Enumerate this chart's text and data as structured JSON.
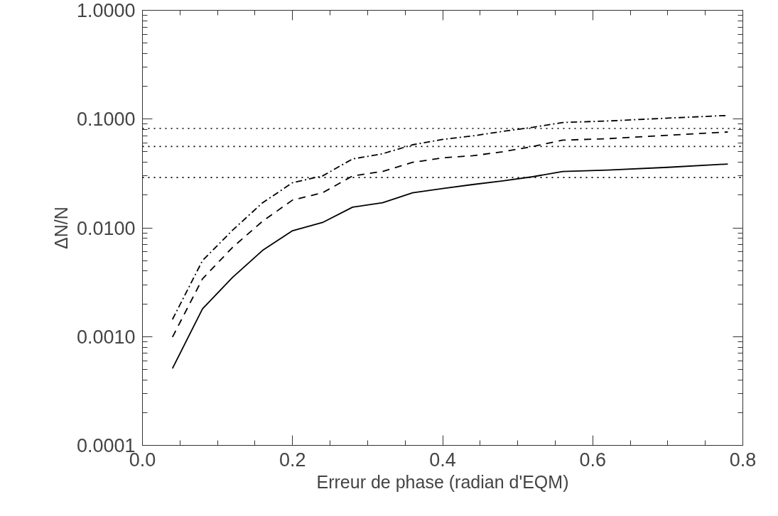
{
  "chart_data": {
    "type": "line",
    "xlabel": "Erreur de phase (radian d'EQM)",
    "ylabel": "ΔN/N",
    "log": "y",
    "x": [
      0.04,
      0.08,
      0.12,
      0.16,
      0.2,
      0.24,
      0.28,
      0.32,
      0.36,
      0.4,
      0.44,
      0.48,
      0.52,
      0.56,
      0.62,
      0.7,
      0.78
    ],
    "series": [
      {
        "color": "#000000",
        "line_style": "solid",
        "values": [
          0.00051,
          0.0018,
          0.0035,
          0.0062,
          0.0094,
          0.0112,
          0.0155,
          0.017,
          0.021,
          0.023,
          0.025,
          0.027,
          0.0295,
          0.033,
          0.034,
          0.036,
          0.0386
        ]
      },
      {
        "color": "#000000",
        "line_style": "dashed",
        "values": [
          0.00099,
          0.0034,
          0.0066,
          0.0115,
          0.018,
          0.021,
          0.03,
          0.033,
          0.04,
          0.044,
          0.046,
          0.05,
          0.056,
          0.064,
          0.066,
          0.071,
          0.076
        ]
      },
      {
        "color": "#000000",
        "line_style": "dashdot",
        "values": [
          0.00144,
          0.005,
          0.0095,
          0.017,
          0.026,
          0.03,
          0.043,
          0.048,
          0.058,
          0.065,
          0.07,
          0.077,
          0.084,
          0.093,
          0.096,
          0.102,
          0.108
        ]
      }
    ],
    "ref_lines": [
      {
        "axis": "y",
        "value": 0.082,
        "line_style": "dotted",
        "color": "#000000"
      },
      {
        "axis": "y",
        "value": 0.056,
        "line_style": "dotted",
        "color": "#000000"
      },
      {
        "axis": "y",
        "value": 0.029,
        "line_style": "dotted",
        "color": "#000000"
      }
    ],
    "xlim": [
      0,
      0.8
    ],
    "ylim": [
      0.0001,
      1
    ],
    "xticks": [
      {
        "value": 0,
        "label": "0.0"
      },
      {
        "value": 0.2,
        "label": "0.2"
      },
      {
        "value": 0.4,
        "label": "0.4"
      },
      {
        "value": 0.6,
        "label": "0.6"
      },
      {
        "value": 0.8,
        "label": "0.8"
      }
    ],
    "yticks": [
      {
        "value": 0.0001,
        "label": "0.0001"
      },
      {
        "value": 0.001,
        "label": "0.0010"
      },
      {
        "value": 0.01,
        "label": "0.0100"
      },
      {
        "value": 0.1,
        "label": "0.1000"
      },
      {
        "value": 1,
        "label": "1.0000"
      }
    ],
    "grid": false
  }
}
